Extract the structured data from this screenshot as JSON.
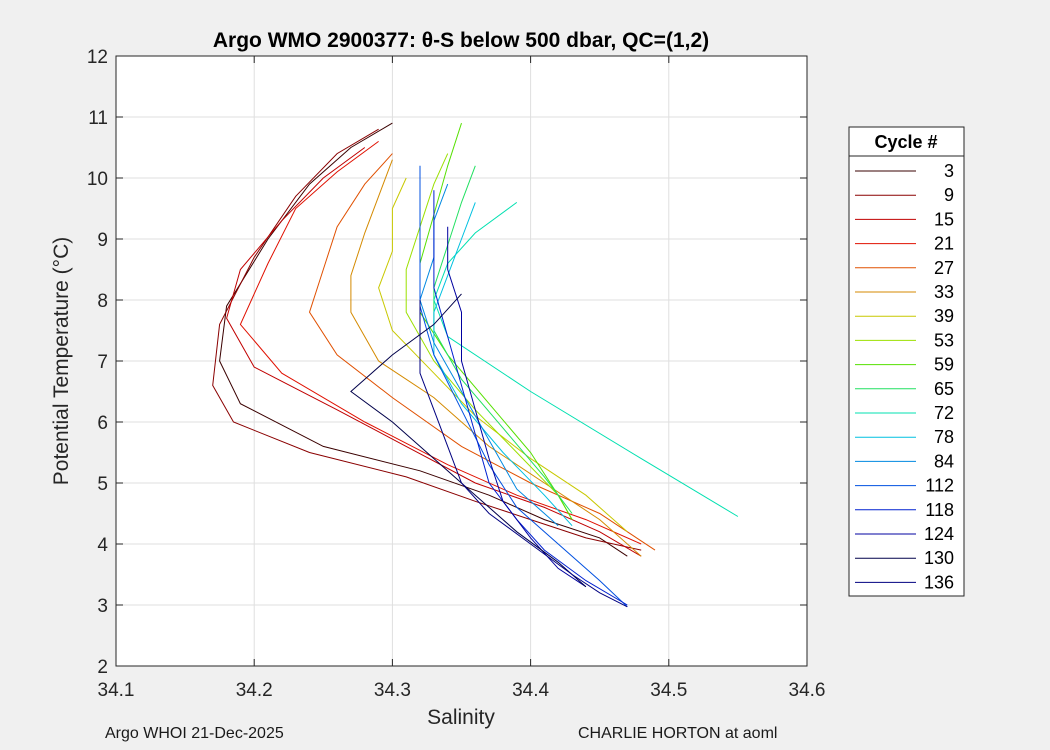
{
  "chart_data": {
    "type": "line",
    "title": "Argo WMO 2900377: θ-S below 500 dbar,  QC=(1,2)",
    "xlabel": "Salinity",
    "ylabel": "Potential Temperature (°C)",
    "xlim": [
      34.1,
      34.6
    ],
    "ylim": [
      2,
      12
    ],
    "xticks": [
      "34.1",
      "34.2",
      "34.3",
      "34.4",
      "34.5",
      "34.6"
    ],
    "yticks": [
      "2",
      "3",
      "4",
      "5",
      "6",
      "7",
      "8",
      "9",
      "10",
      "11",
      "12"
    ],
    "grid": true,
    "legend_title": "Cycle #",
    "legend_position": "right",
    "series": [
      {
        "name": "3",
        "color": "#3a0000",
        "x": [
          34.3,
          34.27,
          34.24,
          34.21,
          34.18,
          34.175,
          34.19,
          34.25,
          34.32,
          34.37,
          34.41,
          34.45,
          34.47
        ],
        "y": [
          10.9,
          10.5,
          9.9,
          9.0,
          7.9,
          7.0,
          6.3,
          5.6,
          5.2,
          4.8,
          4.4,
          4.1,
          3.8
        ]
      },
      {
        "name": "9",
        "color": "#8a0000",
        "x": [
          34.29,
          34.26,
          34.23,
          34.2,
          34.175,
          34.17,
          34.185,
          34.24,
          34.31,
          34.36,
          34.4,
          34.44,
          34.48
        ],
        "y": [
          10.8,
          10.4,
          9.7,
          8.7,
          7.6,
          6.6,
          6.0,
          5.5,
          5.1,
          4.7,
          4.4,
          4.1,
          3.9
        ]
      },
      {
        "name": "15",
        "color": "#c00000",
        "x": [
          34.28,
          34.25,
          34.22,
          34.19,
          34.18,
          34.2,
          34.26,
          34.31,
          34.36,
          34.41,
          34.45,
          34.48
        ],
        "y": [
          10.5,
          10.0,
          9.3,
          8.5,
          7.7,
          6.9,
          6.2,
          5.6,
          5.0,
          4.6,
          4.2,
          3.8
        ]
      },
      {
        "name": "21",
        "color": "#e01000",
        "x": [
          34.29,
          34.26,
          34.23,
          34.21,
          34.19,
          34.22,
          34.28,
          34.34,
          34.39,
          34.44,
          34.48
        ],
        "y": [
          10.6,
          10.1,
          9.5,
          8.6,
          7.6,
          6.8,
          6.0,
          5.3,
          4.8,
          4.4,
          4.0
        ]
      },
      {
        "name": "27",
        "color": "#e05000",
        "x": [
          34.3,
          34.28,
          34.26,
          34.25,
          34.24,
          34.26,
          34.3,
          34.35,
          34.4,
          34.45,
          34.49
        ],
        "y": [
          10.4,
          9.9,
          9.2,
          8.5,
          7.8,
          7.1,
          6.4,
          5.6,
          5.0,
          4.5,
          3.9
        ]
      },
      {
        "name": "33",
        "color": "#d48a00",
        "x": [
          34.3,
          34.29,
          34.28,
          34.27,
          34.27,
          34.29,
          34.33,
          34.37,
          34.41,
          34.45,
          34.48
        ],
        "y": [
          10.3,
          9.7,
          9.1,
          8.4,
          7.8,
          7.0,
          6.4,
          5.6,
          5.0,
          4.4,
          3.8
        ]
      },
      {
        "name": "39",
        "color": "#c8c800",
        "x": [
          34.31,
          34.3,
          34.3,
          34.29,
          34.3,
          34.33,
          34.36,
          34.4,
          34.44,
          34.47
        ],
        "y": [
          10.0,
          9.5,
          8.8,
          8.2,
          7.5,
          6.8,
          6.1,
          5.4,
          4.8,
          4.2
        ]
      },
      {
        "name": "53",
        "color": "#9be000",
        "x": [
          34.34,
          34.33,
          34.32,
          34.31,
          34.31,
          34.33,
          34.36,
          34.39,
          34.42,
          34.43
        ],
        "y": [
          10.4,
          9.9,
          9.2,
          8.5,
          7.8,
          7.0,
          6.2,
          5.5,
          4.8,
          4.4
        ]
      },
      {
        "name": "59",
        "color": "#55e000",
        "x": [
          34.35,
          34.34,
          34.33,
          34.32,
          34.32,
          34.34,
          34.37,
          34.4,
          34.42,
          34.43
        ],
        "y": [
          10.9,
          10.2,
          9.4,
          8.6,
          7.8,
          7.1,
          6.3,
          5.5,
          4.8,
          4.4
        ]
      },
      {
        "name": "65",
        "color": "#20e060",
        "x": [
          34.36,
          34.35,
          34.34,
          34.33,
          34.33,
          34.35,
          34.38,
          34.41,
          34.43
        ],
        "y": [
          10.2,
          9.6,
          8.9,
          8.2,
          7.5,
          6.7,
          5.9,
          5.1,
          4.5
        ]
      },
      {
        "name": "72",
        "color": "#00e0b0",
        "x": [
          34.39,
          34.36,
          34.34,
          34.33,
          34.34,
          34.4,
          34.48,
          34.55
        ],
        "y": [
          9.6,
          9.1,
          8.6,
          8.0,
          7.4,
          6.5,
          5.4,
          4.45
        ]
      },
      {
        "name": "78",
        "color": "#00c0e0",
        "x": [
          34.36,
          34.35,
          34.34,
          34.33,
          34.33,
          34.35,
          34.38,
          34.41,
          34.43
        ],
        "y": [
          9.6,
          9.0,
          8.4,
          7.8,
          7.1,
          6.3,
          5.5,
          4.8,
          4.3
        ]
      },
      {
        "name": "84",
        "color": "#0088e0",
        "x": [
          34.34,
          34.33,
          34.33,
          34.32,
          34.33,
          34.35,
          34.37,
          34.39,
          34.42
        ],
        "y": [
          9.9,
          9.3,
          8.7,
          8.0,
          7.3,
          6.5,
          5.7,
          4.9,
          4.3
        ]
      },
      {
        "name": "112",
        "color": "#0050e0",
        "x": [
          34.32,
          34.32,
          34.32,
          34.32,
          34.33,
          34.35,
          34.37,
          34.39,
          34.42,
          34.45,
          34.47
        ],
        "y": [
          10.2,
          9.5,
          8.7,
          7.9,
          7.1,
          6.2,
          5.3,
          4.6,
          4.0,
          3.4,
          2.97
        ]
      },
      {
        "name": "118",
        "color": "#0020d0",
        "x": [
          34.33,
          34.33,
          34.33,
          34.34,
          34.35,
          34.36,
          34.37,
          34.39,
          34.41,
          34.44,
          34.47
        ],
        "y": [
          9.8,
          9.0,
          8.2,
          7.4,
          6.6,
          5.8,
          5.0,
          4.4,
          3.9,
          3.4,
          3.0
        ]
      },
      {
        "name": "124",
        "color": "#0000a0",
        "x": [
          34.34,
          34.34,
          34.35,
          34.35,
          34.36,
          34.37,
          34.38,
          34.4,
          34.42,
          34.44
        ],
        "y": [
          9.2,
          8.5,
          7.8,
          7.0,
          6.2,
          5.4,
          4.7,
          4.1,
          3.6,
          3.3
        ]
      },
      {
        "name": "130",
        "color": "#00004a",
        "x": [
          34.35,
          34.33,
          34.3,
          34.27,
          34.3,
          34.33,
          34.36,
          34.39,
          34.42,
          34.44
        ],
        "y": [
          8.1,
          7.6,
          7.1,
          6.5,
          6.0,
          5.4,
          4.8,
          4.2,
          3.7,
          3.3
        ]
      },
      {
        "name": "136",
        "color": "#000080",
        "x": [
          34.32,
          34.32,
          34.32,
          34.33,
          34.34,
          34.35,
          34.37,
          34.4,
          34.43,
          34.45,
          34.47
        ],
        "y": [
          8.0,
          7.4,
          6.8,
          6.2,
          5.6,
          5.0,
          4.5,
          4.0,
          3.5,
          3.2,
          2.97
        ]
      }
    ]
  },
  "footer": {
    "left": "Argo WHOI 21-Dec-2025",
    "right": "CHARLIE HORTON at aoml"
  }
}
